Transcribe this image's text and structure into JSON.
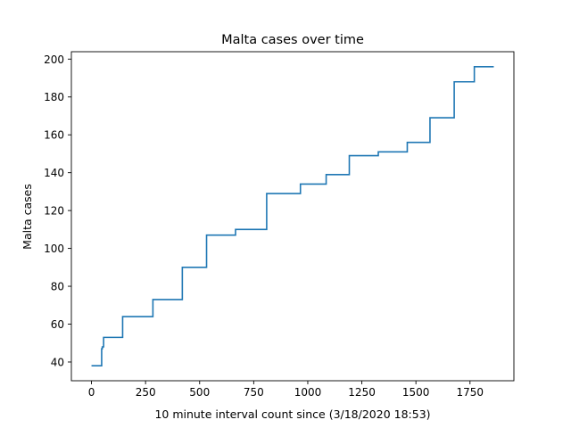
{
  "chart_data": {
    "type": "line",
    "title": "Malta cases over time",
    "xlabel": "10 minute interval count since (3/18/2020 18:53)",
    "ylabel": "Malta cases",
    "xlim": [
      -93,
      1953
    ],
    "ylim": [
      30.1,
      203.9
    ],
    "xticks": [
      0,
      250,
      500,
      750,
      1000,
      1250,
      1500,
      1750
    ],
    "yticks": [
      40,
      60,
      80,
      100,
      120,
      140,
      160,
      180,
      200
    ],
    "grid": false,
    "line_color": "#1f77b4",
    "series": [
      {
        "step": "post",
        "x": [
          0,
          47,
          50,
          56,
          144,
          284,
          420,
          532,
          666,
          810,
          966,
          1085,
          1192,
          1326,
          1460,
          1565,
          1677,
          1770,
          1860
        ],
        "y": [
          38,
          47,
          48,
          53,
          64,
          73,
          90,
          107,
          110,
          129,
          134,
          139,
          149,
          151,
          156,
          169,
          188,
          196,
          196
        ]
      }
    ]
  }
}
